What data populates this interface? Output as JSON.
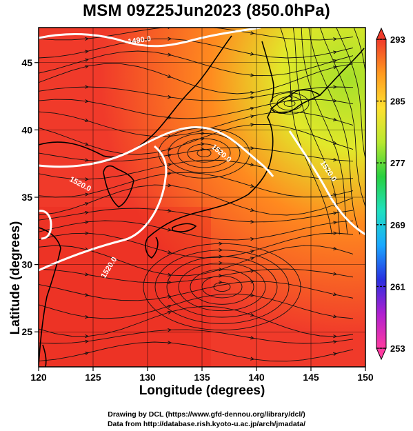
{
  "title": "MSM 09Z25Jun2023 (850.0hPa)",
  "map": {
    "xlabel": "Longitude (degrees)",
    "ylabel": "Latitude  (degrees)",
    "lon_range": [
      120,
      150
    ],
    "lat_range": [
      22.4,
      47.6
    ],
    "lon_ticks": [
      "120",
      "125",
      "130",
      "135",
      "140",
      "145",
      "150"
    ],
    "lat_ticks": [
      "25",
      "30",
      "35",
      "40",
      "45"
    ],
    "contour_labels": [
      "1490.0",
      "1520.0",
      "1520.0",
      "1520.0",
      "1520.0"
    ],
    "field_colors": {
      "warm": "#f03a2a",
      "mid": "#ff8a1f",
      "cool": "#e2e82a",
      "coolest": "#a6e02a"
    },
    "contour_color": "#ffffff",
    "streamline_color": "#111111",
    "coastline_color": "#000000"
  },
  "colorbar": {
    "labels": [
      "293",
      "285",
      "277",
      "269",
      "261",
      "253"
    ],
    "min": 253,
    "max": 293,
    "colors": [
      "#ff3aa0",
      "#b020d0",
      "#2830e0",
      "#1aa8ff",
      "#20e0c0",
      "#28d040",
      "#b8e830",
      "#ffe030",
      "#ff9a20",
      "#f03a2a"
    ]
  },
  "credits": {
    "line1": "Drawing by DCL (https://www.gfd-dennou.org/library/dcl/)",
    "line2": "Data from http://database.rish.kyoto-u.ac.jp/arch/jmadata/"
  }
}
